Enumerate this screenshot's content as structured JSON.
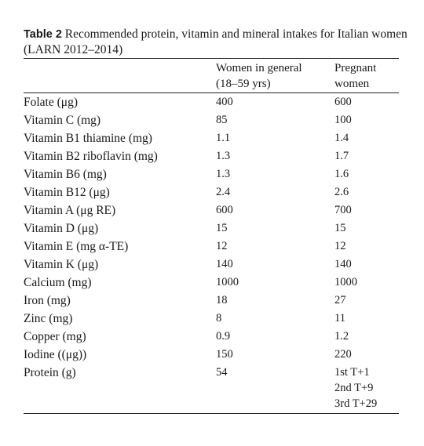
{
  "caption": {
    "label": "Table 2",
    "text": "Recommended protein, vitamin and mineral intakes for Italian women (LARN 2012–2014)"
  },
  "header": {
    "col2_line1": "Women in general",
    "col2_line2": "(18–59 yrs)",
    "col3_line1": "Pregnant",
    "col3_line2": "women"
  },
  "rows": [
    {
      "nutrient": "Folate (μg)",
      "women": "400",
      "pregnant": "600"
    },
    {
      "nutrient": "Vitamin C (mg)",
      "women": "85",
      "pregnant": "100"
    },
    {
      "nutrient": "Vitamin B1 thiamine (mg)",
      "women": "1.1",
      "pregnant": "1.4"
    },
    {
      "nutrient": "Vitamin B2 riboflavin (mg)",
      "women": "1.3",
      "pregnant": "1.7"
    },
    {
      "nutrient": "Vitamin B6 (mg)",
      "women": "1.3",
      "pregnant": "1.6"
    },
    {
      "nutrient": "Vitamin B12 (μg)",
      "women": "2.4",
      "pregnant": "2.6"
    },
    {
      "nutrient": "Vitamin A (μg RE)",
      "women": "600",
      "pregnant": "700"
    },
    {
      "nutrient": "Vitamin D (μg)",
      "women": "15",
      "pregnant": "15"
    },
    {
      "nutrient": "Vitamin E (mg α-TE)",
      "women": "12",
      "pregnant": "12"
    },
    {
      "nutrient": "Vitamin K (μg)",
      "women": "140",
      "pregnant": "140"
    },
    {
      "nutrient": "Calcium (mg)",
      "women": "1000",
      "pregnant": "1000"
    },
    {
      "nutrient": "Iron (mg)",
      "women": "18",
      "pregnant": "27"
    },
    {
      "nutrient": "Zinc (mg)",
      "women": "8",
      "pregnant": "11"
    },
    {
      "nutrient": "Copper (mg)",
      "women": "0.9",
      "pregnant": "1.2"
    },
    {
      "nutrient": "Iodine ((μg))",
      "women": "150",
      "pregnant": "220"
    },
    {
      "nutrient": "Protein (g)",
      "women": "54",
      "pregnant_lines": [
        "1st T+1",
        "2nd T+9",
        "3rd T+29"
      ]
    }
  ]
}
